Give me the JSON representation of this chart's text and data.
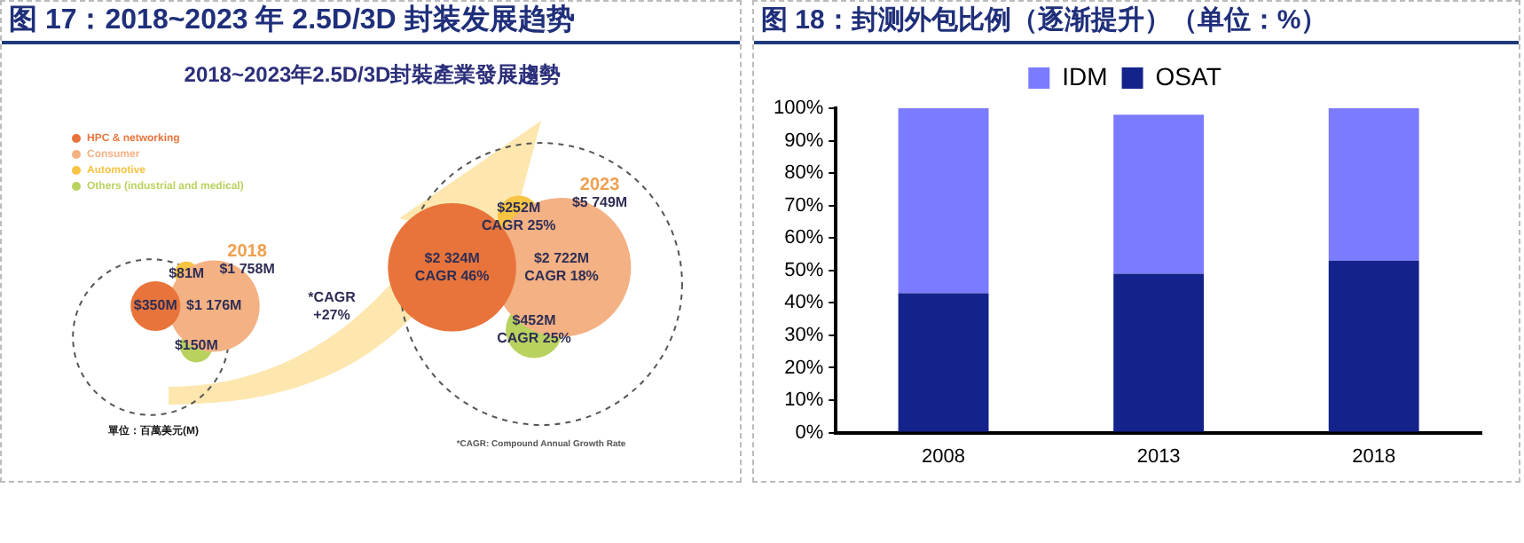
{
  "chart_data": [
    {
      "type": "other",
      "title": "图 17：2018~2023 年 2.5D/3D 封装发展趋势",
      "subtitle": "2018~2023年2.5D/3D封裝產業發展趨勢",
      "categories": [
        "2018",
        "2023"
      ],
      "series": [
        {
          "name": "HPC & networking",
          "color": "#e8743b",
          "values": [
            350,
            2324
          ],
          "value_labels": [
            "$350M",
            "$2 324M"
          ]
        },
        {
          "name": "Consumer",
          "color": "#f4b183",
          "values": [
            1176,
            2722
          ],
          "value_labels": [
            "$1 176M",
            "$2 722M"
          ]
        },
        {
          "name": "Automotive",
          "color": "#f7c443",
          "values": [
            81,
            252
          ],
          "value_labels": [
            "$81M",
            "$252M"
          ]
        },
        {
          "name": "Others (industrial and medical)",
          "color": "#b9d25f",
          "values": [
            150,
            452
          ],
          "value_labels": [
            "$150M",
            "$452M"
          ]
        }
      ],
      "totals": [
        "$1 758M",
        "$5 749M"
      ],
      "legend": "top left",
      "annotations": [
        "CAGR 46%",
        "CAGR 18%",
        "CAGR 25%",
        "CAGR 25%",
        "*CAGR\n+27%",
        "*CAGR: Compound Annual Growth Rate",
        "單位：百萬美元(M)"
      ]
    },
    {
      "type": "bar",
      "title": "图 18：封测外包比例（逐渐提升）（单位：%）",
      "stacked": true,
      "categories": [
        "2008",
        "2013",
        "2018"
      ],
      "series": [
        {
          "name": "OSAT",
          "color": "#14238c",
          "values": [
            43,
            49,
            53
          ]
        },
        {
          "name": "IDM",
          "color": "#7b7bff",
          "values": [
            57,
            49,
            47
          ]
        }
      ],
      "ylim": [
        0,
        100
      ],
      "yticks": [
        {
          "value": 0,
          "label": "0%"
        },
        {
          "value": 10,
          "label": "10%"
        },
        {
          "value": 20,
          "label": "20%"
        },
        {
          "value": 30,
          "label": "30%"
        },
        {
          "value": 40,
          "label": "40%"
        },
        {
          "value": 50,
          "label": "50%"
        },
        {
          "value": 60,
          "label": "60%"
        },
        {
          "value": 70,
          "label": "70%"
        },
        {
          "value": 80,
          "label": "80%"
        },
        {
          "value": 90,
          "label": "90%"
        },
        {
          "value": 100,
          "label": "100%"
        }
      ],
      "grid": false,
      "legend": "top"
    }
  ]
}
